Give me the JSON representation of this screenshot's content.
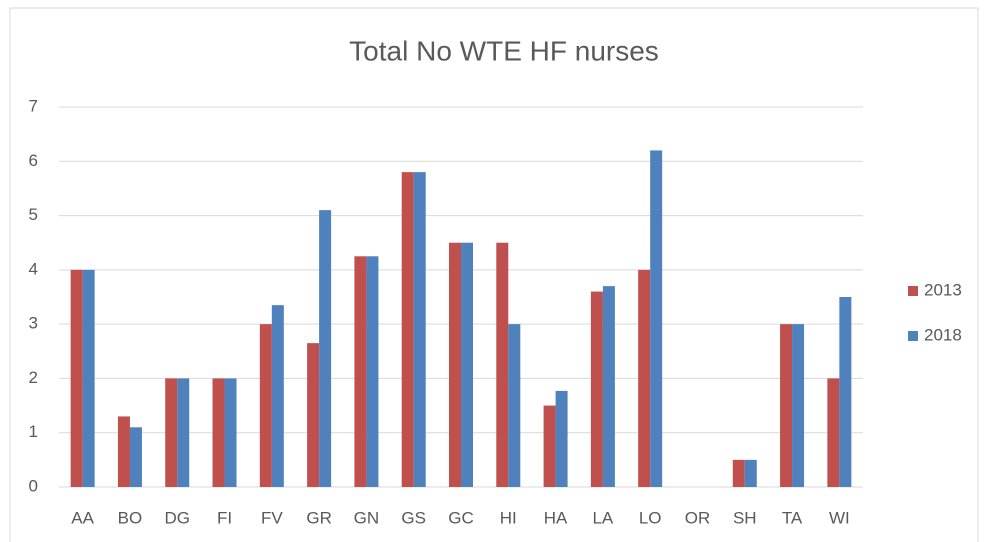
{
  "chart_data": {
    "type": "bar",
    "title": "Total No WTE HF nurses",
    "categories": [
      "AA",
      "BO",
      "DG",
      "FI",
      "FV",
      "GR",
      "GN",
      "GS",
      "GC",
      "HI",
      "HA",
      "LA",
      "LO",
      "OR",
      "SH",
      "TA",
      "WI"
    ],
    "series": [
      {
        "name": "2013",
        "color": "#c0504d",
        "values": [
          4,
          1.3,
          2,
          2,
          3,
          2.65,
          4.25,
          5.8,
          4.5,
          4.5,
          1.5,
          3.6,
          4,
          0,
          0.5,
          3,
          2
        ]
      },
      {
        "name": "2018",
        "color": "#4f81bd",
        "values": [
          4,
          1.1,
          2,
          2,
          3.35,
          5.1,
          4.25,
          5.8,
          4.5,
          3,
          1.77,
          3.7,
          6.2,
          0,
          0.5,
          3,
          3.5
        ]
      }
    ],
    "ylim": [
      0,
      7
    ],
    "yticks": [
      0,
      1,
      2,
      3,
      4,
      5,
      6,
      7
    ],
    "grid": true,
    "legend": "right"
  }
}
